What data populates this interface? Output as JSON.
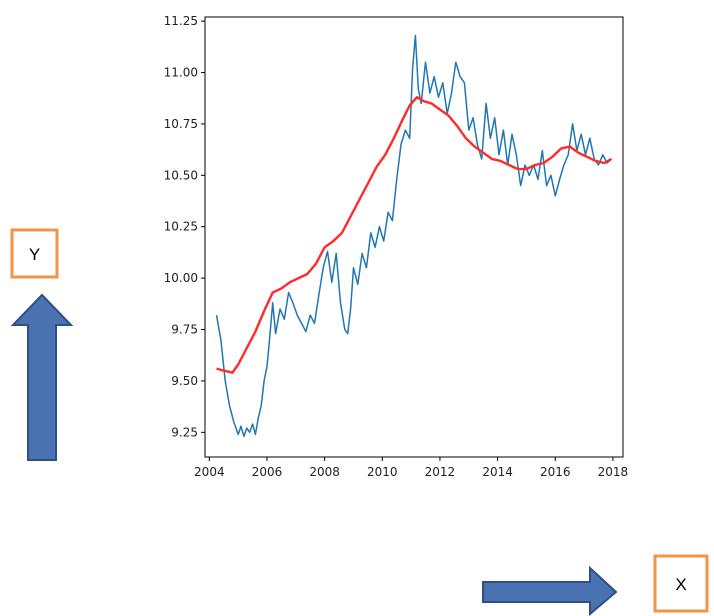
{
  "callouts": {
    "y_label": "Y",
    "x_label": "X",
    "box_color": "#f0954a",
    "arrow_color": "#4a72b0",
    "arrow_stroke": "#2f4f86"
  },
  "chart_data": {
    "type": "line",
    "title": "",
    "xlabel": "",
    "ylabel": "",
    "xlim": [
      2003.85,
      2018.35
    ],
    "ylim": [
      9.13,
      11.27
    ],
    "xticks": [
      2004,
      2006,
      2008,
      2010,
      2012,
      2014,
      2016,
      2018
    ],
    "xtick_labels": [
      "2004",
      "2006",
      "2008",
      "2010",
      "2012",
      "2014",
      "2016",
      "2018"
    ],
    "yticks": [
      9.25,
      9.5,
      9.75,
      10.0,
      10.25,
      10.5,
      10.75,
      11.0,
      11.25
    ],
    "ytick_labels": [
      "9.25",
      "9.50",
      "9.75",
      "10.00",
      "10.25",
      "10.50",
      "10.75",
      "11.00",
      "11.25"
    ],
    "grid": false,
    "series": [
      {
        "color": "#1f77b4",
        "x": [
          2004.25,
          2004.4,
          2004.55,
          2004.7,
          2004.85,
          2005.0,
          2005.1,
          2005.2,
          2005.3,
          2005.4,
          2005.5,
          2005.6,
          2005.7,
          2005.8,
          2005.9,
          2006.0,
          2006.1,
          2006.2,
          2006.3,
          2006.45,
          2006.6,
          2006.75,
          2006.9,
          2007.05,
          2007.2,
          2007.35,
          2007.5,
          2007.65,
          2007.8,
          2007.95,
          2008.1,
          2008.25,
          2008.4,
          2008.55,
          2008.7,
          2008.8,
          2008.9,
          2009.0,
          2009.15,
          2009.3,
          2009.45,
          2009.6,
          2009.75,
          2009.9,
          2010.05,
          2010.2,
          2010.35,
          2010.5,
          2010.65,
          2010.8,
          2010.95,
          2011.05,
          2011.15,
          2011.25,
          2011.35,
          2011.5,
          2011.65,
          2011.8,
          2011.95,
          2012.1,
          2012.25,
          2012.4,
          2012.55,
          2012.7,
          2012.85,
          2013.0,
          2013.15,
          2013.3,
          2013.45,
          2013.6,
          2013.75,
          2013.9,
          2014.05,
          2014.2,
          2014.35,
          2014.5,
          2014.65,
          2014.8,
          2014.95,
          2015.1,
          2015.25,
          2015.4,
          2015.55,
          2015.7,
          2015.85,
          2016.0,
          2016.15,
          2016.3,
          2016.45,
          2016.6,
          2016.75,
          2016.9,
          2017.05,
          2017.2,
          2017.35,
          2017.5,
          2017.65,
          2017.8,
          2017.95
        ],
        "y": [
          9.82,
          9.7,
          9.5,
          9.38,
          9.3,
          9.24,
          9.28,
          9.23,
          9.27,
          9.25,
          9.29,
          9.24,
          9.32,
          9.38,
          9.5,
          9.57,
          9.72,
          9.88,
          9.73,
          9.85,
          9.8,
          9.93,
          9.88,
          9.82,
          9.78,
          9.74,
          9.82,
          9.78,
          9.92,
          10.05,
          10.13,
          9.98,
          10.12,
          9.88,
          9.75,
          9.73,
          9.85,
          10.05,
          9.97,
          10.12,
          10.05,
          10.22,
          10.15,
          10.25,
          10.18,
          10.32,
          10.28,
          10.48,
          10.65,
          10.72,
          10.68,
          11.02,
          11.18,
          10.92,
          10.85,
          11.05,
          10.9,
          10.98,
          10.88,
          10.95,
          10.8,
          10.9,
          11.05,
          10.98,
          10.95,
          10.72,
          10.78,
          10.65,
          10.58,
          10.85,
          10.68,
          10.78,
          10.6,
          10.72,
          10.55,
          10.7,
          10.6,
          10.45,
          10.55,
          10.5,
          10.55,
          10.48,
          10.62,
          10.45,
          10.5,
          10.4,
          10.48,
          10.55,
          10.6,
          10.75,
          10.62,
          10.7,
          10.6,
          10.68,
          10.58,
          10.55,
          10.6,
          10.56,
          10.58
        ]
      },
      {
        "color": "#ff2a2a",
        "x": [
          2004.25,
          2004.5,
          2004.8,
          2005.0,
          2005.3,
          2005.6,
          2005.9,
          2006.2,
          2006.5,
          2006.8,
          2007.1,
          2007.4,
          2007.7,
          2008.0,
          2008.3,
          2008.6,
          2008.9,
          2009.2,
          2009.5,
          2009.8,
          2010.1,
          2010.4,
          2010.7,
          2010.95,
          2011.2,
          2011.45,
          2011.7,
          2012.0,
          2012.3,
          2012.6,
          2012.9,
          2013.2,
          2013.5,
          2013.8,
          2014.1,
          2014.4,
          2014.7,
          2015.0,
          2015.3,
          2015.6,
          2015.9,
          2016.2,
          2016.5,
          2016.8,
          2017.1,
          2017.4,
          2017.7,
          2017.95
        ],
        "y": [
          9.56,
          9.55,
          9.54,
          9.58,
          9.66,
          9.74,
          9.84,
          9.93,
          9.95,
          9.98,
          10.0,
          10.02,
          10.07,
          10.15,
          10.18,
          10.22,
          10.3,
          10.38,
          10.46,
          10.54,
          10.6,
          10.68,
          10.77,
          10.84,
          10.88,
          10.86,
          10.85,
          10.82,
          10.79,
          10.74,
          10.68,
          10.64,
          10.61,
          10.58,
          10.57,
          10.55,
          10.53,
          10.53,
          10.55,
          10.56,
          10.59,
          10.63,
          10.64,
          10.61,
          10.59,
          10.57,
          10.56,
          10.58
        ]
      }
    ]
  }
}
